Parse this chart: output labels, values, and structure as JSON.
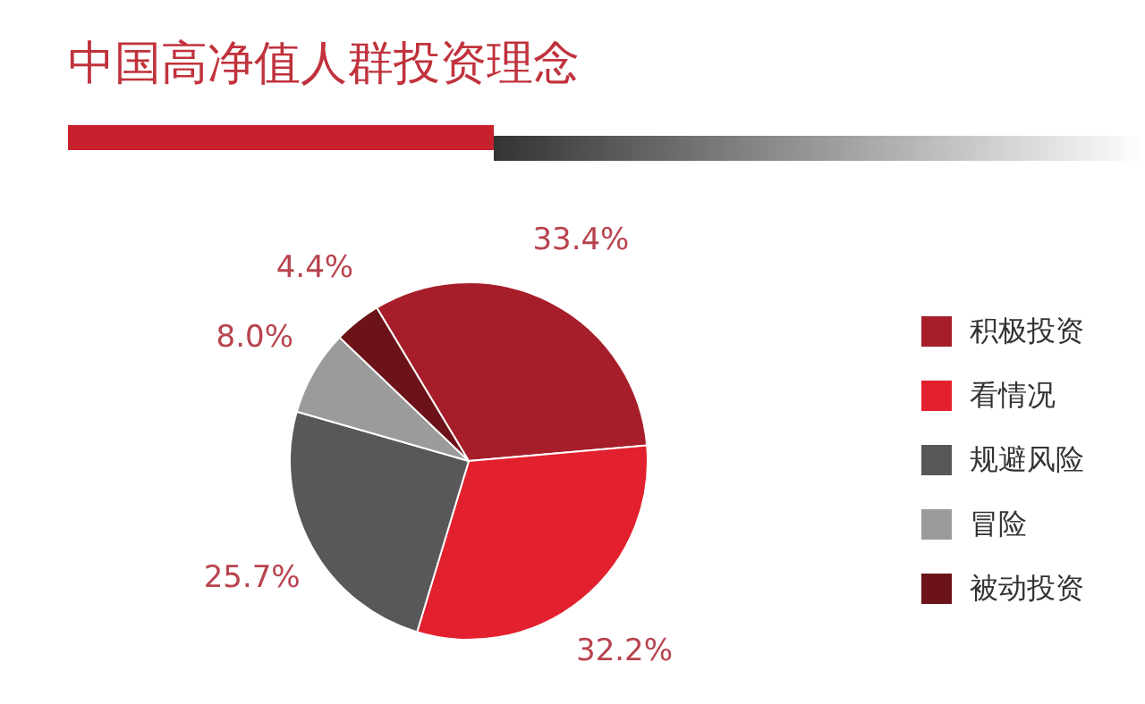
{
  "chart_data": {
    "type": "pie",
    "title": "中国高净值人群投资理念",
    "categories": [
      "积极投资",
      "看情况",
      "规避风险",
      "冒险",
      "被动投资"
    ],
    "values": [
      33.4,
      32.2,
      25.7,
      8.0,
      4.4
    ],
    "colors": [
      "#a61e2a",
      "#e3202d",
      "#58585b",
      "#9b9b9c",
      "#6b1318"
    ],
    "value_labels": [
      "33.4%",
      "32.2%",
      "25.7%",
      "8.0%",
      "4.4%"
    ],
    "legend": "right"
  }
}
